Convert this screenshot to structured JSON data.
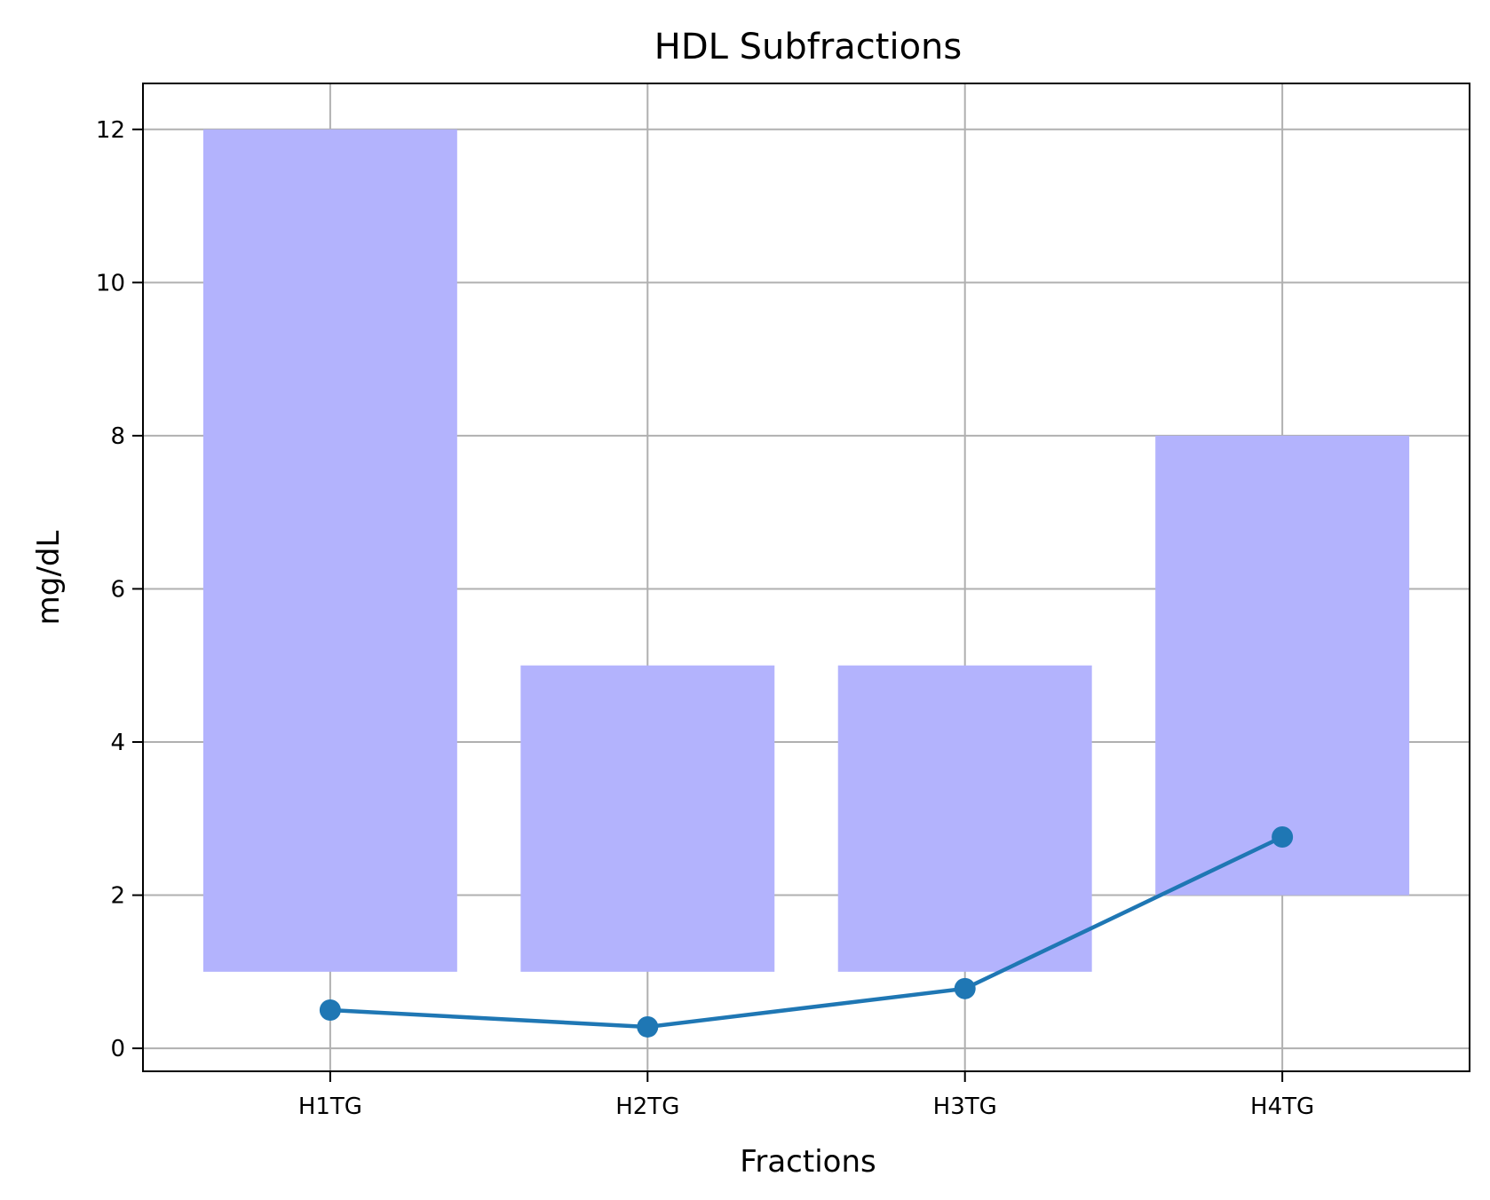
{
  "chart_data": {
    "type": "bar",
    "title": "HDL Subfractions",
    "xlabel": "Fractions",
    "ylabel": "mg/dL",
    "categories": [
      "H1TG",
      "H2TG",
      "H3TG",
      "H4TG"
    ],
    "ranges": {
      "color": "#b3b3fd",
      "bottom": [
        1,
        1,
        1,
        2
      ],
      "top": [
        12,
        5,
        5,
        8
      ]
    },
    "series": [
      {
        "values": [
          0.5,
          0.28,
          0.78,
          2.76
        ],
        "color": "#1f77b4",
        "style": "line-markers"
      }
    ],
    "ylim": [
      -0.3,
      12.6
    ],
    "yticks": [
      0,
      2,
      4,
      6,
      8,
      10,
      12
    ],
    "grid": true
  }
}
